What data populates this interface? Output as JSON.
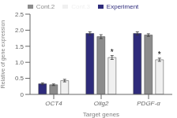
{
  "chart_data": {
    "type": "bar",
    "xlabel": "Target genes",
    "ylabel": "Relative of gene expression",
    "categories": [
      "OCT4",
      "Olig2",
      "PDGF-α"
    ],
    "series": [
      {
        "name": "Experiment",
        "color": "#2e2b7b",
        "values": [
          0.33,
          1.9,
          1.9
        ],
        "errors": [
          0.03,
          0.05,
          0.05
        ]
      },
      {
        "name": "Cont.2",
        "color": "#8c8c8c",
        "values": [
          0.3,
          1.8,
          1.85
        ],
        "errors": [
          0.025,
          0.06,
          0.04
        ]
      },
      {
        "name": "Cont.3",
        "color": "#f0f0f0",
        "values": [
          0.43,
          1.15,
          1.08
        ],
        "errors": [
          0.04,
          0.06,
          0.05
        ]
      }
    ],
    "ylim": [
      0,
      2.5
    ],
    "yticks": [
      0,
      0.5,
      {
        "value": 1.0,
        "label": "1.0"
      },
      1.5,
      {
        "value": 2.0,
        "label": "2.0"
      },
      2.5
    ],
    "annotations": [
      {
        "text": "*",
        "category": "Olig2",
        "series": "Cont.3"
      },
      {
        "text": "*",
        "category": "PDGF-α",
        "series": "Cont.3"
      }
    ],
    "legend": "top",
    "grid": false
  }
}
